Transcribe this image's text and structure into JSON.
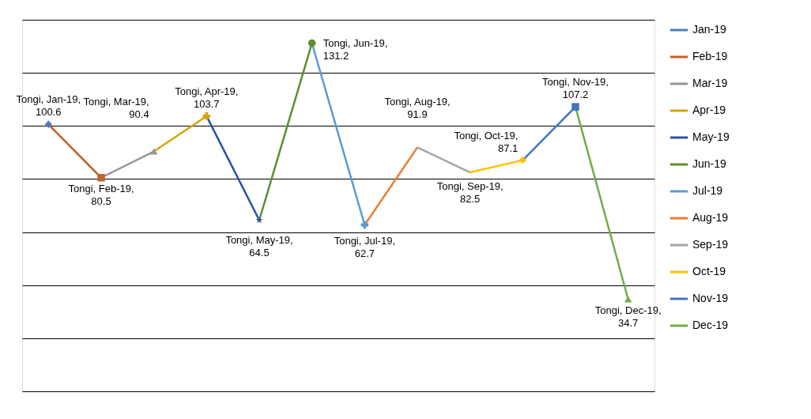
{
  "chart_data": {
    "type": "line",
    "categories": [
      null,
      null,
      null,
      null,
      null,
      null,
      null,
      null,
      null,
      null,
      null,
      null
    ],
    "ylim": [
      0,
      140
    ],
    "yticks": [
      {
        "value": 0,
        "label": null
      },
      {
        "value": 20,
        "label": null
      },
      {
        "value": 40,
        "label": null
      },
      {
        "value": 60,
        "label": null
      },
      {
        "value": 80,
        "label": null
      },
      {
        "value": 100,
        "label": null
      },
      {
        "value": 120,
        "label": null
      },
      {
        "value": 140,
        "label": null
      }
    ],
    "grid": "y",
    "legend": "right",
    "series": [
      {
        "name": "Jan-19",
        "color": "#4a7ebb",
        "marker": "diamond",
        "values": [
          100.6,
          null,
          null,
          null,
          null,
          null,
          null,
          null,
          null,
          null,
          null,
          null
        ],
        "value_labels": [
          "Tongi, Jan-19, 100.6",
          null,
          null,
          null,
          null,
          null,
          null,
          null,
          null,
          null,
          null,
          null
        ]
      },
      {
        "name": "Feb-19",
        "color": "#c0632b",
        "marker": "square",
        "values": [
          100.6,
          80.5,
          null,
          null,
          null,
          null,
          null,
          null,
          null,
          null,
          null,
          null
        ],
        "value_labels": [
          null,
          "Tongi, Feb-19, 80.5",
          null,
          null,
          null,
          null,
          null,
          null,
          null,
          null,
          null,
          null
        ]
      },
      {
        "name": "Mar-19",
        "color": "#959595",
        "marker": "triangle",
        "values": [
          null,
          80.5,
          90.4,
          null,
          null,
          null,
          null,
          null,
          null,
          null,
          null,
          null
        ],
        "value_labels": [
          null,
          null,
          "Tongi, Mar-19, 90.4",
          null,
          null,
          null,
          null,
          null,
          null,
          null,
          null,
          null
        ]
      },
      {
        "name": "Apr-19",
        "color": "#d4a50f",
        "marker": "cross",
        "values": [
          null,
          null,
          90.4,
          103.7,
          null,
          null,
          null,
          null,
          null,
          null,
          null,
          null
        ],
        "value_labels": [
          null,
          null,
          null,
          "Tongi, Apr-19, 103.7",
          null,
          null,
          null,
          null,
          null,
          null,
          null,
          null
        ]
      },
      {
        "name": "May-19",
        "color": "#2d52a0",
        "marker": "star",
        "values": [
          null,
          null,
          null,
          103.7,
          64.5,
          null,
          null,
          null,
          null,
          null,
          null,
          null
        ],
        "value_labels": [
          null,
          null,
          null,
          null,
          "Tongi, May-19, 64.5",
          null,
          null,
          null,
          null,
          null,
          null,
          null
        ]
      },
      {
        "name": "Jun-19",
        "color": "#5a8f32",
        "marker": "circle",
        "values": [
          null,
          null,
          null,
          null,
          64.5,
          131.2,
          null,
          null,
          null,
          null,
          null,
          null
        ],
        "value_labels": [
          null,
          null,
          null,
          null,
          null,
          "Tongi, Jun-19, 131.2",
          null,
          null,
          null,
          null,
          null,
          null
        ]
      },
      {
        "name": "Jul-19",
        "color": "#5b9bd5",
        "marker": "cross",
        "values": [
          null,
          null,
          null,
          null,
          null,
          131.2,
          62.7,
          null,
          null,
          null,
          null,
          null
        ],
        "value_labels": [
          null,
          null,
          null,
          null,
          null,
          null,
          "Tongi, Jul-19, 62.7",
          null,
          null,
          null,
          null,
          null
        ]
      },
      {
        "name": "Aug-19",
        "color": "#ed7d31",
        "marker": "none",
        "values": [
          null,
          null,
          null,
          null,
          null,
          null,
          62.7,
          91.9,
          null,
          null,
          null,
          null
        ],
        "value_labels": [
          null,
          null,
          null,
          null,
          null,
          null,
          null,
          "Tongi, Aug-19, 91.9",
          null,
          null,
          null,
          null
        ]
      },
      {
        "name": "Sep-19",
        "color": "#a5a5a5",
        "marker": "none",
        "values": [
          null,
          null,
          null,
          null,
          null,
          null,
          null,
          91.9,
          82.5,
          null,
          null,
          null
        ],
        "value_labels": [
          null,
          null,
          null,
          null,
          null,
          null,
          null,
          null,
          "Tongi, Sep-19, 82.5",
          null,
          null,
          null
        ]
      },
      {
        "name": "Oct-19",
        "color": "#ffc000",
        "marker": "diamond",
        "values": [
          null,
          null,
          null,
          null,
          null,
          null,
          null,
          null,
          82.5,
          87.1,
          null,
          null
        ],
        "value_labels": [
          null,
          null,
          null,
          null,
          null,
          null,
          null,
          null,
          null,
          "Tongi, Oct-19, 87.1",
          null,
          null
        ]
      },
      {
        "name": "Nov-19",
        "color": "#4472c4",
        "marker": "square",
        "values": [
          null,
          null,
          null,
          null,
          null,
          null,
          null,
          null,
          null,
          87.1,
          107.2,
          null
        ],
        "value_labels": [
          null,
          null,
          null,
          null,
          null,
          null,
          null,
          null,
          null,
          null,
          "Tongi, Nov-19, 107.2",
          null
        ]
      },
      {
        "name": "Dec-19",
        "color": "#70ad47",
        "marker": "triangle",
        "values": [
          null,
          null,
          null,
          null,
          null,
          null,
          null,
          null,
          null,
          null,
          107.2,
          34.7
        ],
        "value_labels": [
          null,
          null,
          null,
          null,
          null,
          null,
          null,
          null,
          null,
          null,
          null,
          "Tongi, Dec-19, 34.7"
        ]
      }
    ]
  }
}
